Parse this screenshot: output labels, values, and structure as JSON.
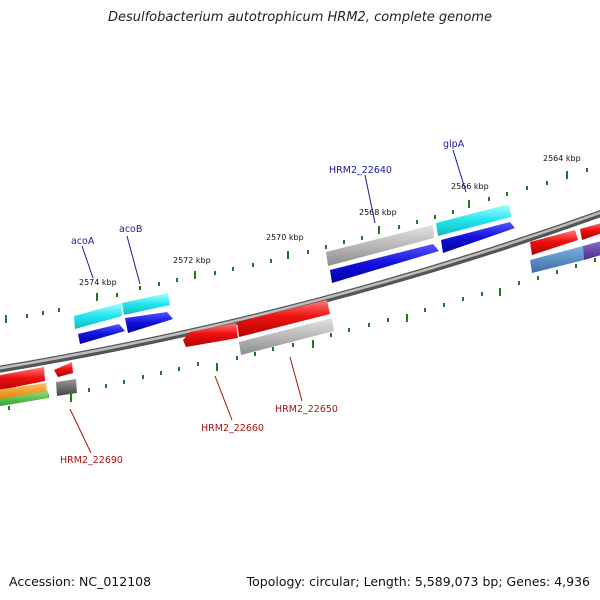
{
  "title": "Desulfobacterium autotrophicum HRM2, complete genome",
  "footer": {
    "accession": "Accession: NC_012108",
    "summary": "Topology: circular; Length: 5,589,073 bp; Genes: 4,936"
  },
  "scale_labels": [
    "2574 kbp",
    "2572 kbp",
    "2570 kbp",
    "2568 kbp",
    "2566 kbp",
    "2564 kbp"
  ],
  "genes_top": [
    {
      "label": "acoA"
    },
    {
      "label": "acoB"
    },
    {
      "label": "HRM2_22640"
    },
    {
      "label": "glpA"
    }
  ],
  "genes_bottom": [
    {
      "label": "HRM2_22690"
    },
    {
      "label": "HRM2_22660"
    },
    {
      "label": "HRM2_22650"
    }
  ],
  "colors": {
    "backbone": "#7a7a7a",
    "tick": "#1f7a1f",
    "gene_red": "#ee1111",
    "gene_cyan": "#22e0e8",
    "gene_blue": "#1111dd",
    "gene_gray": "#b8b8b8",
    "label_top": "#1a1a99",
    "label_bottom": "#aa1111"
  }
}
